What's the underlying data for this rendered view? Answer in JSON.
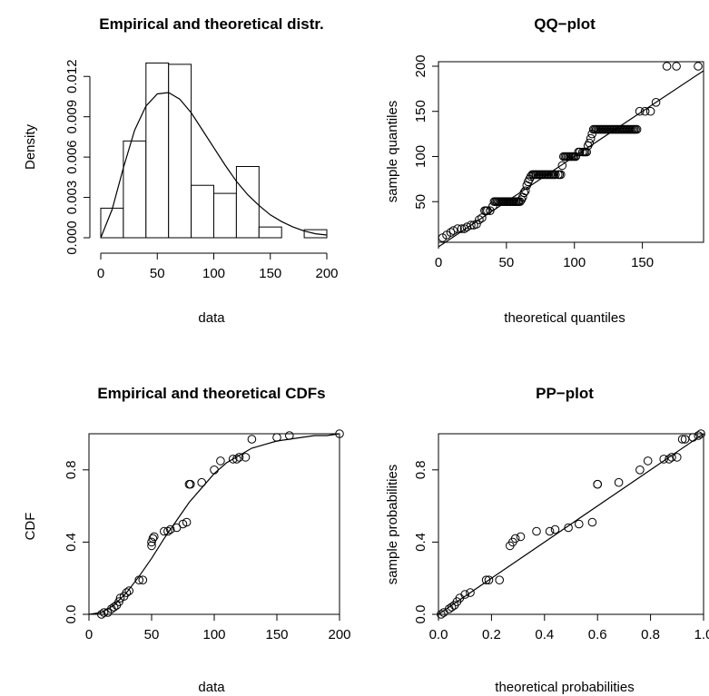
{
  "chart_data": [
    {
      "type": "bar",
      "title": "Empirical and theoretical distr.",
      "xlabel": "data",
      "ylabel": "Density",
      "xlim": [
        0,
        200
      ],
      "ylim": [
        0,
        0.0135
      ],
      "xticks": [
        0,
        50,
        100,
        150,
        200
      ],
      "yticks": [
        0.0,
        0.006,
        0.012
      ],
      "yticks_minor": [
        0.003,
        0.009
      ],
      "ytick_labels": [
        "0.000",
        "0.006",
        "0.012"
      ],
      "ytick_minor_labels": [
        "0.003",
        "0.009"
      ],
      "bins": [
        [
          0,
          20
        ],
        [
          20,
          40
        ],
        [
          40,
          60
        ],
        [
          60,
          80
        ],
        [
          80,
          100
        ],
        [
          100,
          120
        ],
        [
          120,
          140
        ],
        [
          140,
          160
        ],
        [
          160,
          180
        ],
        [
          180,
          200
        ]
      ],
      "density": [
        0.0022,
        0.0072,
        0.013,
        0.0129,
        0.0039,
        0.0033,
        0.0053,
        0.0008,
        0.0,
        0.0006
      ],
      "fitted_curve": {
        "distribution": "gamma",
        "x": [
          0,
          10,
          20,
          30,
          40,
          50,
          60,
          70,
          80,
          90,
          100,
          110,
          120,
          130,
          140,
          150,
          160,
          170,
          180,
          190,
          200
        ],
        "y": [
          0.0,
          0.0021,
          0.0052,
          0.008,
          0.0098,
          0.0107,
          0.0108,
          0.0103,
          0.0093,
          0.008,
          0.0067,
          0.0054,
          0.0042,
          0.0032,
          0.0024,
          0.0017,
          0.0012,
          0.0008,
          0.0005,
          0.0003,
          0.0002
        ]
      }
    },
    {
      "type": "scatter",
      "title": "QQ−plot",
      "xlabel": "theoretical quantiles",
      "ylabel": "sample quantiles",
      "xlim": [
        0,
        195
      ],
      "ylim": [
        5,
        205
      ],
      "xticks": [
        0,
        50,
        100,
        150
      ],
      "yticks": [
        50,
        100,
        150,
        200
      ],
      "reference_line": [
        [
          0,
          0
        ],
        [
          195,
          195
        ]
      ],
      "points": [
        [
          3,
          10
        ],
        [
          6,
          13
        ],
        [
          9,
          16
        ],
        [
          11,
          18
        ],
        [
          14,
          20
        ],
        [
          17,
          20
        ],
        [
          19,
          20
        ],
        [
          21,
          22
        ],
        [
          24,
          24
        ],
        [
          26,
          24
        ],
        [
          28,
          25
        ],
        [
          30,
          30
        ],
        [
          32,
          32
        ],
        [
          34,
          40
        ],
        [
          35,
          40
        ],
        [
          36,
          40
        ],
        [
          38,
          40
        ],
        [
          40,
          45
        ],
        [
          41,
          50
        ],
        [
          42,
          50
        ],
        [
          43,
          50
        ],
        [
          44,
          50
        ],
        [
          45,
          50
        ],
        [
          46,
          50
        ],
        [
          47,
          50
        ],
        [
          48,
          50
        ],
        [
          49,
          50
        ],
        [
          50,
          50
        ],
        [
          51,
          50
        ],
        [
          52,
          50
        ],
        [
          53,
          50
        ],
        [
          54,
          50
        ],
        [
          55,
          50
        ],
        [
          56,
          50
        ],
        [
          57,
          50
        ],
        [
          58,
          50
        ],
        [
          59,
          50
        ],
        [
          60,
          50
        ],
        [
          61,
          52
        ],
        [
          62,
          55
        ],
        [
          63,
          60
        ],
        [
          64,
          62
        ],
        [
          65,
          68
        ],
        [
          66,
          72
        ],
        [
          67,
          75
        ],
        [
          68,
          78
        ],
        [
          69,
          80
        ],
        [
          70,
          80
        ],
        [
          71,
          80
        ],
        [
          72,
          80
        ],
        [
          73,
          80
        ],
        [
          74,
          80
        ],
        [
          75,
          80
        ],
        [
          76,
          80
        ],
        [
          77,
          80
        ],
        [
          78,
          80
        ],
        [
          79,
          80
        ],
        [
          80,
          80
        ],
        [
          81,
          80
        ],
        [
          82,
          80
        ],
        [
          83,
          80
        ],
        [
          84,
          80
        ],
        [
          85,
          80
        ],
        [
          86,
          80
        ],
        [
          88,
          80
        ],
        [
          89,
          80
        ],
        [
          90,
          80
        ],
        [
          91,
          90
        ],
        [
          92,
          100
        ],
        [
          93,
          100
        ],
        [
          94,
          100
        ],
        [
          95,
          100
        ],
        [
          96,
          100
        ],
        [
          97,
          100
        ],
        [
          98,
          100
        ],
        [
          99,
          100
        ],
        [
          100,
          100
        ],
        [
          101,
          100
        ],
        [
          103,
          105
        ],
        [
          104,
          105
        ],
        [
          106,
          105
        ],
        [
          107,
          105
        ],
        [
          108,
          105
        ],
        [
          109,
          105
        ],
        [
          110,
          112
        ],
        [
          111,
          115
        ],
        [
          112,
          120
        ],
        [
          113,
          125
        ],
        [
          114,
          130
        ],
        [
          115,
          130
        ],
        [
          116,
          130
        ],
        [
          117,
          130
        ],
        [
          118,
          130
        ],
        [
          119,
          130
        ],
        [
          120,
          130
        ],
        [
          121,
          130
        ],
        [
          122,
          130
        ],
        [
          123,
          130
        ],
        [
          124,
          130
        ],
        [
          125,
          130
        ],
        [
          126,
          130
        ],
        [
          127,
          130
        ],
        [
          128,
          130
        ],
        [
          129,
          130
        ],
        [
          130,
          130
        ],
        [
          131,
          130
        ],
        [
          132,
          130
        ],
        [
          133,
          130
        ],
        [
          134,
          130
        ],
        [
          135,
          130
        ],
        [
          136,
          130
        ],
        [
          137,
          130
        ],
        [
          138,
          130
        ],
        [
          139,
          130
        ],
        [
          140,
          130
        ],
        [
          141,
          130
        ],
        [
          142,
          130
        ],
        [
          143,
          130
        ],
        [
          144,
          130
        ],
        [
          145,
          130
        ],
        [
          146,
          130
        ],
        [
          148,
          150
        ],
        [
          152,
          150
        ],
        [
          156,
          150
        ],
        [
          160,
          160
        ],
        [
          168,
          200
        ],
        [
          175,
          200
        ],
        [
          191,
          200
        ]
      ]
    },
    {
      "type": "scatter",
      "title": "Empirical and theoretical CDFs",
      "xlabel": "data",
      "ylabel": "CDF",
      "xlim": [
        0,
        200
      ],
      "ylim": [
        0,
        1
      ],
      "xticks": [
        0,
        50,
        100,
        150,
        200
      ],
      "yticks": [
        0.0,
        0.4,
        0.8
      ],
      "ytick_labels": [
        "0.0",
        "0.4",
        "0.8"
      ],
      "points": [
        [
          10,
          0.0
        ],
        [
          12,
          0.01
        ],
        [
          15,
          0.01
        ],
        [
          18,
          0.03
        ],
        [
          20,
          0.04
        ],
        [
          22,
          0.05
        ],
        [
          24,
          0.07
        ],
        [
          25,
          0.09
        ],
        [
          28,
          0.1
        ],
        [
          30,
          0.12
        ],
        [
          32,
          0.13
        ],
        [
          40,
          0.19
        ],
        [
          43,
          0.19
        ],
        [
          50,
          0.38
        ],
        [
          50,
          0.4
        ],
        [
          51,
          0.42
        ],
        [
          52,
          0.43
        ],
        [
          60,
          0.46
        ],
        [
          63,
          0.46
        ],
        [
          65,
          0.47
        ],
        [
          70,
          0.48
        ],
        [
          75,
          0.5
        ],
        [
          78,
          0.51
        ],
        [
          80,
          0.72
        ],
        [
          81,
          0.72
        ],
        [
          90,
          0.73
        ],
        [
          100,
          0.8
        ],
        [
          105,
          0.85
        ],
        [
          115,
          0.86
        ],
        [
          118,
          0.86
        ],
        [
          120,
          0.87
        ],
        [
          125,
          0.87
        ],
        [
          130,
          0.97
        ],
        [
          150,
          0.98
        ],
        [
          160,
          0.99
        ],
        [
          200,
          1.0
        ]
      ],
      "fitted_curve": {
        "x": [
          0,
          10,
          20,
          30,
          40,
          50,
          60,
          70,
          80,
          90,
          100,
          110,
          120,
          130,
          140,
          150,
          160,
          170,
          180,
          190,
          200
        ],
        "y": [
          0.0,
          0.01,
          0.05,
          0.12,
          0.21,
          0.31,
          0.42,
          0.52,
          0.62,
          0.7,
          0.78,
          0.84,
          0.88,
          0.92,
          0.94,
          0.96,
          0.97,
          0.98,
          0.99,
          0.99,
          1.0
        ]
      }
    },
    {
      "type": "scatter",
      "title": "PP−plot",
      "xlabel": "theoretical probabilities",
      "ylabel": "sample probabilities",
      "xlim": [
        0,
        1
      ],
      "ylim": [
        0,
        1
      ],
      "xticks": [
        0.0,
        0.2,
        0.4,
        0.6,
        0.8,
        1.0
      ],
      "xtick_labels": [
        "0.0",
        "0.2",
        "0.4",
        "0.6",
        "0.8",
        "1.0"
      ],
      "yticks": [
        0.0,
        0.4,
        0.8
      ],
      "ytick_labels": [
        "0.0",
        "0.4",
        "0.8"
      ],
      "reference_line": [
        [
          0,
          0
        ],
        [
          1,
          1
        ]
      ],
      "points": [
        [
          0.01,
          0.0
        ],
        [
          0.02,
          0.01
        ],
        [
          0.04,
          0.03
        ],
        [
          0.05,
          0.04
        ],
        [
          0.06,
          0.05
        ],
        [
          0.07,
          0.07
        ],
        [
          0.08,
          0.09
        ],
        [
          0.1,
          0.11
        ],
        [
          0.12,
          0.12
        ],
        [
          0.18,
          0.19
        ],
        [
          0.19,
          0.19
        ],
        [
          0.23,
          0.19
        ],
        [
          0.27,
          0.38
        ],
        [
          0.28,
          0.4
        ],
        [
          0.29,
          0.42
        ],
        [
          0.31,
          0.43
        ],
        [
          0.37,
          0.46
        ],
        [
          0.42,
          0.46
        ],
        [
          0.44,
          0.47
        ],
        [
          0.49,
          0.48
        ],
        [
          0.53,
          0.5
        ],
        [
          0.58,
          0.51
        ],
        [
          0.6,
          0.72
        ],
        [
          0.6,
          0.72
        ],
        [
          0.68,
          0.73
        ],
        [
          0.76,
          0.8
        ],
        [
          0.79,
          0.85
        ],
        [
          0.85,
          0.86
        ],
        [
          0.87,
          0.86
        ],
        [
          0.88,
          0.87
        ],
        [
          0.9,
          0.87
        ],
        [
          0.92,
          0.97
        ],
        [
          0.93,
          0.97
        ],
        [
          0.96,
          0.98
        ],
        [
          0.98,
          0.99
        ],
        [
          0.99,
          1.0
        ]
      ]
    }
  ]
}
